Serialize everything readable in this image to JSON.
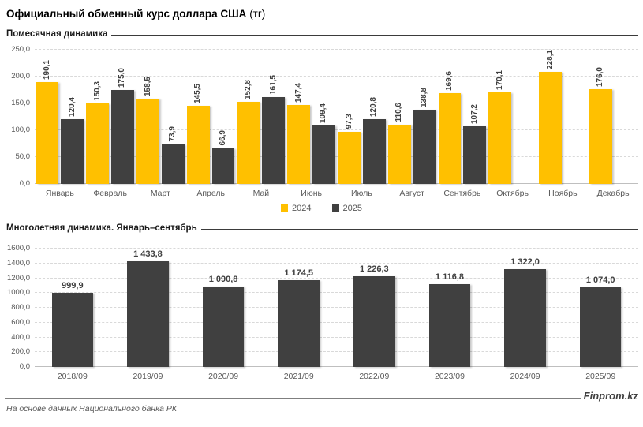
{
  "page": {
    "title": "Официальный обменный курс доллара США",
    "title_unit": "(тг)",
    "brand": "Finprom.kz",
    "source_note": "На основе данных Национального банка РК"
  },
  "colors": {
    "series_2024": "#FFC000",
    "series_2025": "#404040",
    "grid": "#D9D9D9",
    "axis_text": "#595959",
    "data_label": "#404040"
  },
  "legend": {
    "items": [
      {
        "label": "2024",
        "color": "#FFC000"
      },
      {
        "label": "2025",
        "color": "#404040"
      }
    ]
  },
  "chart_data": [
    {
      "type": "bar",
      "title": "Помесячная динамика",
      "categories": [
        "Январь",
        "Февраль",
        "Март",
        "Апрель",
        "Май",
        "Июнь",
        "Июль",
        "Август",
        "Сентябрь",
        "Октябрь",
        "Ноябрь",
        "Декабрь"
      ],
      "series": [
        {
          "name": "2024",
          "color": "#FFC000",
          "values": [
            190.1,
            150.3,
            158.5,
            145.5,
            152.8,
            147.4,
            97.3,
            110.6,
            169.6,
            170.1,
            228.1,
            176.0
          ],
          "labels": [
            "190,1",
            "150,3",
            "158,5",
            "145,5",
            "152,8",
            "147,4",
            "97,3",
            "110,6",
            "169,6",
            "170,1",
            "228,1",
            "176,0"
          ]
        },
        {
          "name": "2025",
          "color": "#404040",
          "values": [
            120.4,
            175.0,
            73.9,
            66.9,
            161.5,
            109.4,
            120.8,
            138.8,
            107.2,
            null,
            null,
            null
          ],
          "labels": [
            "120,4",
            "175,0",
            "73,9",
            "66,9",
            "161,5",
            "109,4",
            "120,8",
            "138,8",
            "107,2",
            null,
            null,
            null
          ]
        }
      ],
      "ylim": [
        0,
        250
      ],
      "yticks": [
        "0,0",
        "50,0",
        "100,0",
        "150,0",
        "200,0",
        "250,0"
      ],
      "grid": true,
      "legend_position": "bottom",
      "data_label_orientation": "vertical"
    },
    {
      "type": "bar",
      "title": "Многолетняя динамика. Январь–сентябрь",
      "categories": [
        "2018/09",
        "2019/09",
        "2020/09",
        "2021/09",
        "2022/09",
        "2023/09",
        "2024/09",
        "2025/09"
      ],
      "series": [
        {
          "name": "Январь–сентябрь",
          "color": "#404040",
          "values": [
            999.9,
            1433.8,
            1090.8,
            1174.5,
            1226.3,
            1116.8,
            1322.0,
            1074.0
          ],
          "labels": [
            "999,9",
            "1 433,8",
            "1 090,8",
            "1 174,5",
            "1 226,3",
            "1 116,8",
            "1 322,0",
            "1 074,0"
          ]
        }
      ],
      "ylim": [
        0,
        1600
      ],
      "yticks": [
        "0,0",
        "200,0",
        "400,0",
        "600,0",
        "800,0",
        "1000,0",
        "1200,0",
        "1400,0",
        "1600,0"
      ],
      "grid": true,
      "legend_position": "none",
      "data_label_orientation": "horizontal"
    }
  ]
}
